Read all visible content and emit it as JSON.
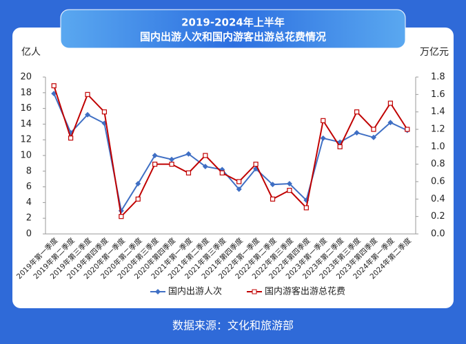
{
  "chart_data": {
    "type": "line",
    "title": "2019-2024年上半年",
    "subtitle": "国内出游人次和国内游客出游总花费情况",
    "y_label": "亿人",
    "y2_label": "万亿元",
    "source": "数据来源：文化和旅游部",
    "categories": [
      "2019年第一季度",
      "2019年第二季度",
      "2019年第三季度",
      "2019年第四季度",
      "2020年第一季度",
      "2020年第二季度",
      "2020年第三季度",
      "2020年第四季度",
      "2021年第一季度",
      "2021年第二季度",
      "2021年第三季度",
      "2021年第四季度",
      "2022年第一季度",
      "2022年第二季度",
      "2022年第三季度",
      "2022年第四季度",
      "2023年第一季度",
      "2023年第二季度",
      "2023年第三季度",
      "2023年第四季度",
      "2024年第一季度",
      "2024年第二季度"
    ],
    "series": [
      {
        "name": "国内出游人次",
        "color": "#3f6fc4",
        "values": [
          17.9,
          12.9,
          15.2,
          14.1,
          2.95,
          6.4,
          10.0,
          9.5,
          10.2,
          8.6,
          8.2,
          5.7,
          8.3,
          6.3,
          6.4,
          4.3,
          12.2,
          11.7,
          12.9,
          12.3,
          14.2,
          13.2
        ]
      },
      {
        "name": "国内游客出游总花费",
        "color": "#c00000",
        "axis": "y2",
        "values": [
          1.7,
          1.1,
          1.6,
          1.4,
          0.2,
          0.4,
          0.8,
          0.8,
          0.7,
          0.9,
          0.7,
          0.6,
          0.8,
          0.4,
          0.5,
          0.3,
          1.3,
          1.0,
          1.4,
          1.2,
          1.5,
          1.2
        ]
      }
    ],
    "ylim": [
      0,
      20
    ],
    "yticks": [
      0,
      2,
      4,
      6,
      8,
      10,
      12,
      14,
      16,
      18,
      20
    ],
    "y2lim": [
      0,
      1.8
    ],
    "y2ticks": [
      {
        "value": 0,
        "label": "0.0"
      },
      0.2,
      0.4,
      0.6,
      0.8,
      {
        "value": 1,
        "label": "1.0"
      },
      1.2,
      1.4,
      1.6,
      1.8
    ],
    "grid": false,
    "legend": "bottom"
  }
}
